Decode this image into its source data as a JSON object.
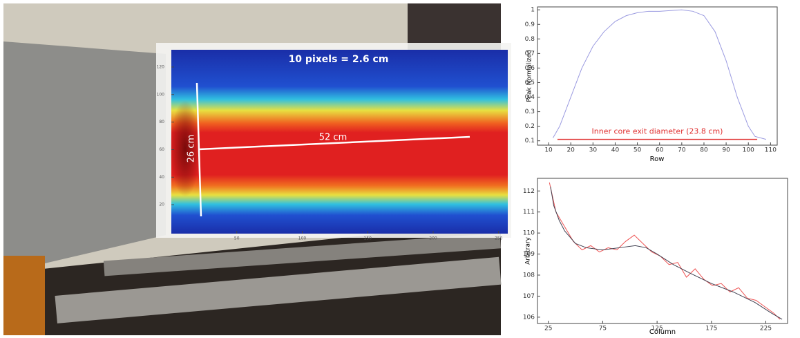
{
  "chart_data": [
    {
      "type": "heatmap",
      "annotations": [
        "10 pixels = 2.6 cm",
        "26 cm",
        "52 cm"
      ],
      "xlim": [
        0,
        257
      ],
      "xticks": [
        50,
        100,
        150,
        200,
        250
      ],
      "ylim": [
        0,
        126
      ],
      "yticks": [
        20,
        40,
        60,
        80,
        100,
        120
      ]
    },
    {
      "type": "line",
      "xlabel": "Row",
      "ylabel": "Peak Normalized",
      "xlim": [
        5,
        113
      ],
      "xticks": [
        10,
        20,
        30,
        40,
        50,
        60,
        70,
        80,
        90,
        100,
        110
      ],
      "ylim": [
        0.07,
        1.02
      ],
      "yticks": [
        0.1,
        0.2,
        0.3,
        0.4,
        0.5,
        0.6,
        0.7,
        0.8,
        0.9,
        1
      ],
      "series": [
        {
          "color": "#9a9ae0",
          "x": [
            12,
            15,
            20,
            25,
            30,
            35,
            40,
            45,
            50,
            55,
            60,
            65,
            70,
            75,
            80,
            85,
            90,
            95,
            100,
            103,
            108
          ],
          "values": [
            0.12,
            0.2,
            0.4,
            0.6,
            0.75,
            0.85,
            0.92,
            0.96,
            0.98,
            0.99,
            0.99,
            0.995,
            1.0,
            0.99,
            0.96,
            0.85,
            0.65,
            0.4,
            0.2,
            0.13,
            0.11
          ]
        },
        {
          "name": "Inner core exit diameter (23.8 cm)",
          "color": "#e03030",
          "x": [
            14,
            104
          ],
          "values": [
            0.11,
            0.11
          ]
        }
      ]
    },
    {
      "type": "line",
      "xlabel": "Column",
      "ylabel": "Arbitrary",
      "xlim": [
        15,
        245
      ],
      "xticks": [
        25,
        75,
        125,
        175,
        225
      ],
      "ylim": [
        105.7,
        112.6
      ],
      "yticks": [
        106,
        107,
        108,
        109,
        110,
        111,
        112
      ],
      "series": [
        {
          "color": "#ee5555",
          "x": [
            26,
            32,
            40,
            48,
            56,
            64,
            72,
            80,
            88,
            96,
            104,
            112,
            120,
            128,
            136,
            144,
            152,
            160,
            168,
            176,
            184,
            192,
            200,
            208,
            216,
            224,
            232,
            238
          ],
          "values": [
            112.4,
            111.0,
            110.3,
            109.6,
            109.2,
            109.4,
            109.1,
            109.3,
            109.2,
            109.6,
            109.9,
            109.5,
            109.1,
            108.9,
            108.5,
            108.6,
            107.9,
            108.3,
            107.8,
            107.5,
            107.6,
            107.2,
            107.4,
            106.9,
            106.8,
            106.5,
            106.2,
            105.9
          ]
        },
        {
          "color": "#404050",
          "x": [
            27,
            30,
            35,
            40,
            50,
            60,
            75,
            90,
            105,
            115,
            125,
            140,
            155,
            175,
            195,
            215,
            230,
            240
          ],
          "values": [
            112.2,
            111.3,
            110.6,
            110.1,
            109.5,
            109.3,
            109.2,
            109.3,
            109.4,
            109.3,
            109.0,
            108.5,
            108.1,
            107.6,
            107.2,
            106.7,
            106.2,
            105.9
          ]
        }
      ]
    }
  ]
}
